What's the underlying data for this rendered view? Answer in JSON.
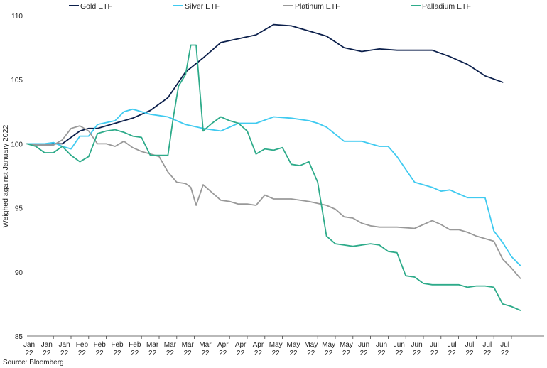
{
  "chart_data": {
    "type": "line",
    "title": "",
    "xlabel": "",
    "ylabel": "Weighed against January 2022",
    "ylim": [
      85,
      110
    ],
    "yticks": [
      85,
      90,
      95,
      100,
      105,
      110
    ],
    "grid": false,
    "legend_position": "top",
    "xtick_labels": [
      [
        "Jan",
        "22"
      ],
      [
        "Jan",
        "22"
      ],
      [
        "Jan",
        "22"
      ],
      [
        "Feb",
        "22"
      ],
      [
        "Feb",
        "22"
      ],
      [
        "Feb",
        "22"
      ],
      [
        "Feb",
        "22"
      ],
      [
        "Mar",
        "22"
      ],
      [
        "Mar",
        "22"
      ],
      [
        "Mar",
        "22"
      ],
      [
        "Mar",
        "22"
      ],
      [
        "Apr",
        "22"
      ],
      [
        "Apr",
        "22"
      ],
      [
        "Apr",
        "22"
      ],
      [
        "May",
        "22"
      ],
      [
        "May",
        "22"
      ],
      [
        "May",
        "22"
      ],
      [
        "May",
        "22"
      ],
      [
        "May",
        "22"
      ],
      [
        "Jun",
        "22"
      ],
      [
        "Jun",
        "22"
      ],
      [
        "Jun",
        "22"
      ],
      [
        "Jun",
        "22"
      ],
      [
        "Jul",
        "22"
      ],
      [
        "Jul",
        "22"
      ],
      [
        "Jul",
        "22"
      ],
      [
        "Jul",
        "22"
      ],
      [
        "Jul",
        "22"
      ]
    ],
    "series": [
      {
        "name": "Gold ETF",
        "color": "#0b1f4b",
        "x": [
          0,
          1,
          2,
          3,
          3.5,
          4,
          5,
          6,
          7,
          8,
          8.5,
          9,
          10,
          11,
          12,
          13,
          14,
          15,
          16,
          17,
          18,
          19,
          20,
          21,
          22,
          23,
          24,
          25,
          26,
          27
        ],
        "values": [
          100,
          100,
          100,
          101.0,
          101.2,
          101.2,
          101.6,
          102.0,
          102.6,
          103.6,
          104.6,
          105.6,
          106.7,
          107.9,
          108.2,
          108.5,
          109.3,
          109.2,
          108.8,
          108.4,
          107.5,
          107.2,
          107.4,
          107.3,
          107.3,
          107.3,
          106.8,
          106.2,
          105.3,
          104.8
        ]
      },
      {
        "name": "Silver ETF",
        "color": "#3fcaf0",
        "x": [
          0,
          1,
          1.5,
          2,
          2.5,
          3,
          3.5,
          4,
          5,
          5.5,
          6,
          6.5,
          7,
          7.5,
          8,
          9,
          10,
          11,
          12,
          13,
          14,
          15,
          16,
          16.5,
          17,
          18,
          19,
          20,
          20.5,
          21,
          22,
          23,
          23.5,
          24,
          24.5,
          25,
          26,
          26.5,
          27,
          27.5,
          28
        ],
        "values": [
          100,
          100,
          100.1,
          99.8,
          99.6,
          100.6,
          100.6,
          101.5,
          101.8,
          102.5,
          102.7,
          102.5,
          102.3,
          102.2,
          102.1,
          101.5,
          101.2,
          101.0,
          101.6,
          101.6,
          102.1,
          102.0,
          101.8,
          101.6,
          101.3,
          100.2,
          100.2,
          99.8,
          99.8,
          99.0,
          97.0,
          96.6,
          96.3,
          96.4,
          96.1,
          95.8,
          95.8,
          93.2,
          92.3,
          91.2,
          90.5
        ]
      },
      {
        "name": "Platinum ETF",
        "color": "#999999",
        "x": [
          0,
          0.5,
          1,
          1.5,
          2,
          2.5,
          3,
          3.5,
          4,
          4.5,
          5,
          5.5,
          6,
          6.5,
          7,
          7.5,
          8,
          8.5,
          9,
          9.3,
          9.6,
          10,
          10.5,
          11,
          11.5,
          12,
          12.5,
          13,
          13.5,
          14,
          15,
          16,
          17,
          17.5,
          18,
          18.5,
          19,
          19.5,
          20,
          21,
          22,
          23,
          23.5,
          24,
          24.5,
          25,
          25.5,
          26,
          26.5,
          27,
          27.5,
          28
        ],
        "values": [
          100,
          99.9,
          99.9,
          99.9,
          100.3,
          101.2,
          101.4,
          101.0,
          100.0,
          100.0,
          99.8,
          100.2,
          99.7,
          99.4,
          99.2,
          99.0,
          97.8,
          97.0,
          96.9,
          96.6,
          95.2,
          96.8,
          96.2,
          95.6,
          95.5,
          95.3,
          95.3,
          95.2,
          96.0,
          95.7,
          95.7,
          95.5,
          95.2,
          94.9,
          94.3,
          94.2,
          93.8,
          93.6,
          93.5,
          93.5,
          93.4,
          94.0,
          93.7,
          93.3,
          93.3,
          93.1,
          92.8,
          92.6,
          92.4,
          91.0,
          90.3,
          89.5
        ]
      },
      {
        "name": "Palladium ETF",
        "color": "#2eab8a",
        "x": [
          0,
          0.5,
          1,
          1.5,
          2,
          2.5,
          3,
          3.5,
          4,
          4.5,
          5,
          5.5,
          6,
          6.5,
          7,
          7.5,
          8,
          8.3,
          8.6,
          9,
          9.3,
          9.6,
          10,
          10.5,
          11,
          11.5,
          12,
          12.5,
          13,
          13.5,
          14,
          14.5,
          15,
          15.5,
          16,
          16.5,
          17,
          17.5,
          18,
          18.5,
          19,
          19.5,
          20,
          20.5,
          21,
          21.5,
          22,
          22.5,
          23,
          23.5,
          24,
          24.5,
          25,
          25.5,
          26,
          26.5,
          27,
          27.5,
          28
        ],
        "values": [
          100,
          99.8,
          99.3,
          99.3,
          99.8,
          99.1,
          98.6,
          99.0,
          100.8,
          101.0,
          101.1,
          100.9,
          100.6,
          100.5,
          99.1,
          99.1,
          99.1,
          102.0,
          104.5,
          105.4,
          107.7,
          107.7,
          101.0,
          101.6,
          102.1,
          101.8,
          101.6,
          101.0,
          99.2,
          99.6,
          99.5,
          99.7,
          98.4,
          98.3,
          98.6,
          97.0,
          92.8,
          92.2,
          92.1,
          92.0,
          92.1,
          92.2,
          92.1,
          91.6,
          91.5,
          89.7,
          89.6,
          89.1,
          89.0,
          89.0,
          89.0,
          89.0,
          88.8,
          88.9,
          88.9,
          88.8,
          87.5,
          87.3,
          87.0
        ]
      }
    ]
  },
  "source_text": "Source: Bloomberg"
}
